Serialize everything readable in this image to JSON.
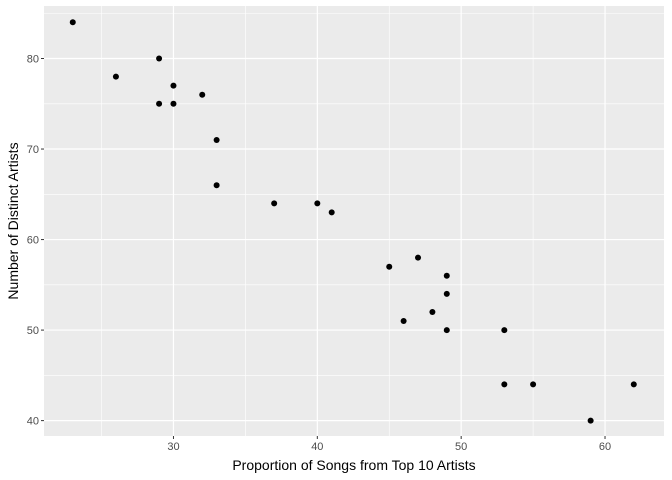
{
  "chart_data": {
    "type": "scatter",
    "title": "",
    "xlabel": "Proportion of Songs from Top 10 Artists",
    "ylabel": "Number of Distinct Artists",
    "xlim": [
      21,
      64.1
    ],
    "ylim": [
      38.3,
      85.8
    ],
    "x_ticks": [
      30,
      40,
      50,
      60
    ],
    "y_ticks": [
      40,
      50,
      60,
      70,
      80
    ],
    "x_minor_ticks": [
      25,
      35,
      45,
      55
    ],
    "y_minor_ticks": [
      45,
      55,
      65,
      75,
      85
    ],
    "grid": true,
    "colors": {
      "panel": "#ebebeb",
      "grid": "#ffffff",
      "point": "#000000"
    },
    "points": [
      {
        "x": 23,
        "y": 84
      },
      {
        "x": 26,
        "y": 78
      },
      {
        "x": 29,
        "y": 80
      },
      {
        "x": 29,
        "y": 75
      },
      {
        "x": 30,
        "y": 77
      },
      {
        "x": 30,
        "y": 75
      },
      {
        "x": 32,
        "y": 76
      },
      {
        "x": 33,
        "y": 71
      },
      {
        "x": 33,
        "y": 66
      },
      {
        "x": 37,
        "y": 64
      },
      {
        "x": 40,
        "y": 64
      },
      {
        "x": 41,
        "y": 63
      },
      {
        "x": 45,
        "y": 57
      },
      {
        "x": 46,
        "y": 51
      },
      {
        "x": 47,
        "y": 58
      },
      {
        "x": 48,
        "y": 52
      },
      {
        "x": 49,
        "y": 56
      },
      {
        "x": 49,
        "y": 54
      },
      {
        "x": 49,
        "y": 50
      },
      {
        "x": 53,
        "y": 50
      },
      {
        "x": 53,
        "y": 44
      },
      {
        "x": 55,
        "y": 44
      },
      {
        "x": 59,
        "y": 40
      },
      {
        "x": 62,
        "y": 44
      }
    ]
  }
}
